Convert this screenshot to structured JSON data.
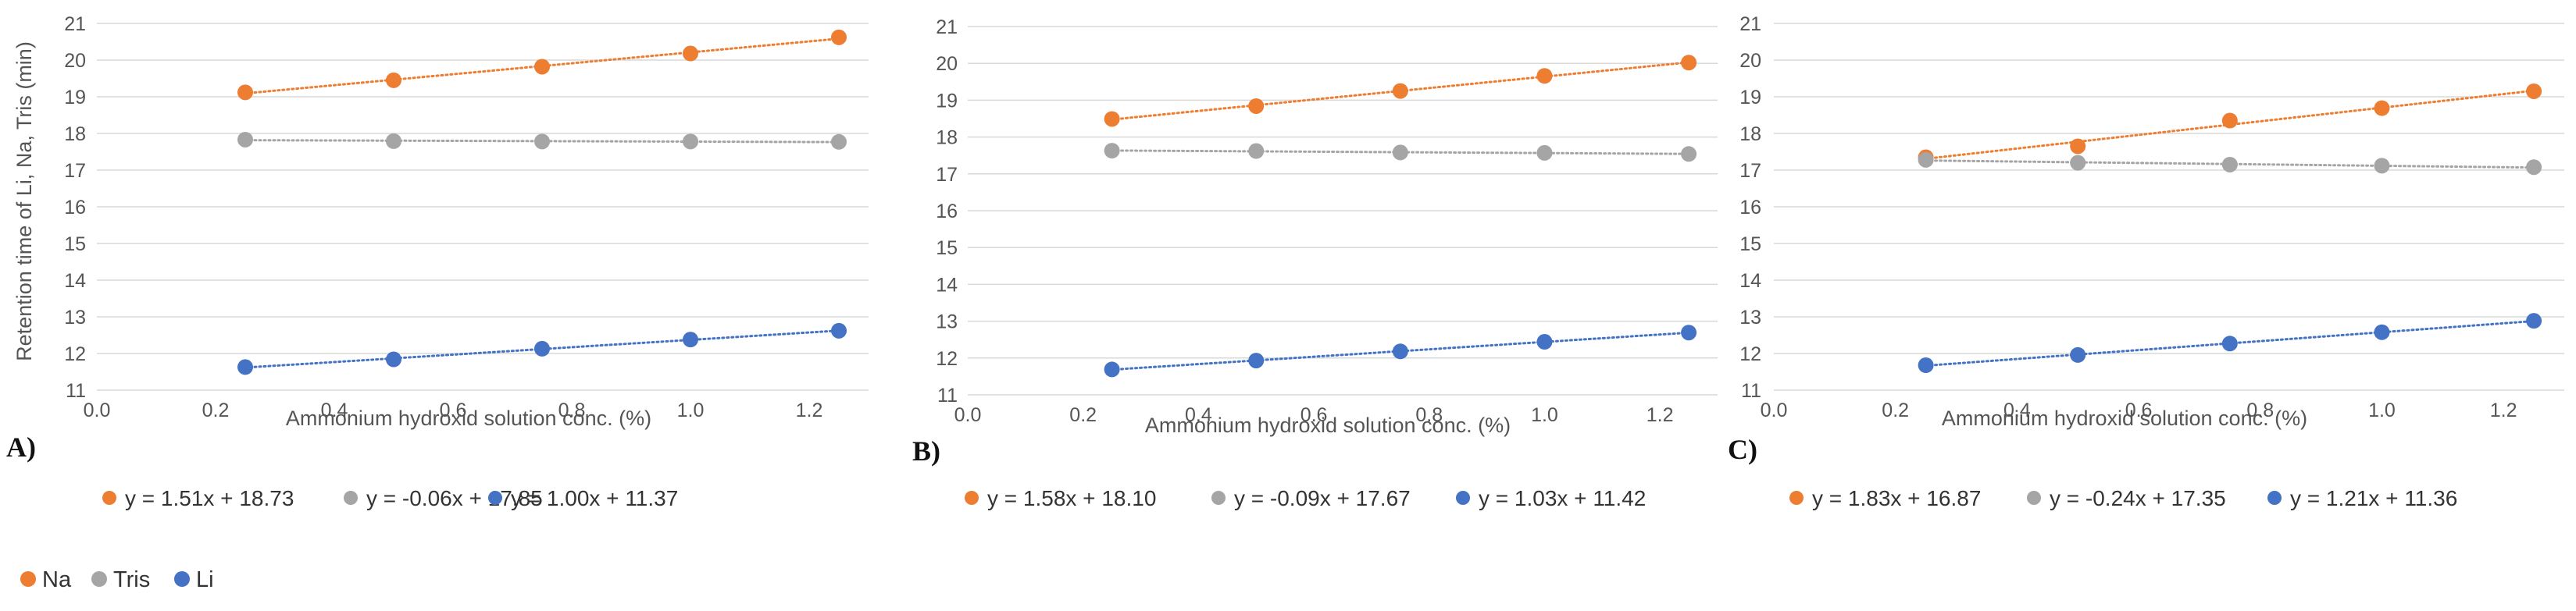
{
  "colors": {
    "Na": "#ED7D31",
    "Tris": "#A5A5A5",
    "Li": "#4472C4"
  },
  "legend": {
    "entries": [
      "Na",
      "Tris",
      "Li"
    ]
  },
  "chart_data": [
    {
      "type": "scatter",
      "panel_label": "A)",
      "xlabel": "Ammonium hydroxid solution conc. (%)",
      "ylabel": "Retention time of Li, Na, Tris (min)",
      "xlim": [
        0.0,
        1.3
      ],
      "ylim": [
        11,
        21
      ],
      "x_ticks": [
        "0.0",
        "0.2",
        "0.4",
        "0.6",
        "0.8",
        "1.0",
        "1.2"
      ],
      "y_ticks": [
        "11",
        "12",
        "13",
        "14",
        "15",
        "16",
        "17",
        "18",
        "19",
        "20",
        "21"
      ],
      "x": [
        0.25,
        0.5,
        0.75,
        1.0,
        1.25
      ],
      "series": [
        {
          "name": "Na",
          "values": [
            19.12,
            19.45,
            19.82,
            20.18,
            20.62
          ],
          "trendline": "y = 1.51x + 18.73"
        },
        {
          "name": "Tris",
          "values": [
            17.83,
            17.79,
            17.78,
            17.78,
            17.77
          ],
          "trendline": "y = -0.06x + 17.85"
        },
        {
          "name": "Li",
          "values": [
            11.63,
            11.84,
            12.13,
            12.38,
            12.62
          ],
          "trendline": "y = 1.00x + 11.37"
        }
      ]
    },
    {
      "type": "scatter",
      "panel_label": "B)",
      "xlabel": "Ammonium hydroxid solution conc. (%)",
      "ylabel": "",
      "xlim": [
        0.0,
        1.3
      ],
      "ylim": [
        11,
        21
      ],
      "x_ticks": [
        "0.0",
        "0.2",
        "0.4",
        "0.6",
        "0.8",
        "1.0",
        "1.2"
      ],
      "y_ticks": [
        "11",
        "12",
        "13",
        "14",
        "15",
        "16",
        "17",
        "18",
        "19",
        "20",
        "21"
      ],
      "x": [
        0.25,
        0.5,
        0.75,
        1.0,
        1.25
      ],
      "series": [
        {
          "name": "Na",
          "values": [
            18.49,
            18.84,
            19.25,
            19.66,
            20.02
          ],
          "trendline": "y = 1.58x + 18.10"
        },
        {
          "name": "Tris",
          "values": [
            17.63,
            17.62,
            17.58,
            17.57,
            17.54
          ],
          "trendline": "y = -0.09x + 17.67"
        },
        {
          "name": "Li",
          "values": [
            11.69,
            11.93,
            12.18,
            12.44,
            12.69
          ],
          "trendline": "y = 1.03x + 11.42"
        }
      ]
    },
    {
      "type": "scatter",
      "panel_label": "C)",
      "xlabel": "Ammonium hydroxid solution conc. (%)",
      "ylabel": "",
      "xlim": [
        0.0,
        1.3
      ],
      "ylim": [
        11,
        21
      ],
      "x_ticks": [
        "0.0",
        "0.2",
        "0.4",
        "0.6",
        "0.8",
        "1.0",
        "1.2"
      ],
      "y_ticks": [
        "11",
        "12",
        "13",
        "14",
        "15",
        "16",
        "17",
        "18",
        "19",
        "20",
        "21"
      ],
      "x": [
        0.25,
        0.5,
        0.75,
        1.0,
        1.25
      ],
      "series": [
        {
          "name": "Na",
          "values": [
            17.35,
            17.65,
            18.35,
            18.69,
            19.15
          ],
          "trendline": "y = 1.83x + 16.87"
        },
        {
          "name": "Tris",
          "values": [
            17.28,
            17.2,
            17.15,
            17.12,
            17.08
          ],
          "trendline": "y = -0.24x + 17.35"
        },
        {
          "name": "Li",
          "values": [
            11.68,
            11.96,
            12.27,
            12.58,
            12.89
          ],
          "trendline": "y = 1.21x + 11.36"
        }
      ]
    }
  ]
}
